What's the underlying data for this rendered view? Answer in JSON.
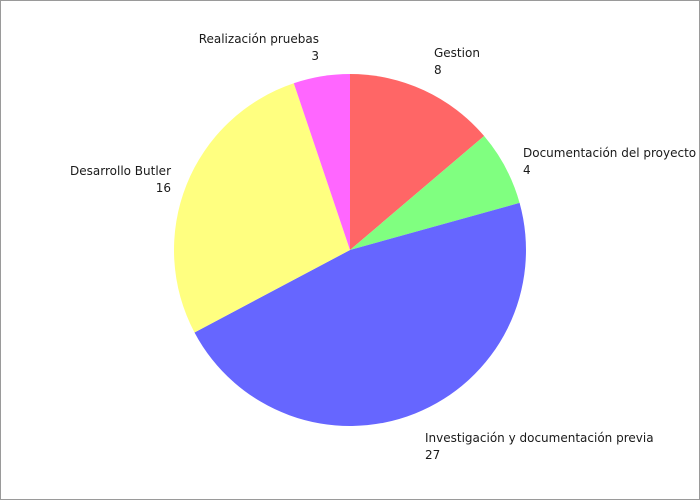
{
  "chart_data": {
    "type": "pie",
    "title": "",
    "slices": [
      {
        "label": "Gestion",
        "value": 8,
        "color": "#ff6666"
      },
      {
        "label": "Documentación del proyecto",
        "value": 4,
        "color": "#80ff80"
      },
      {
        "label": "Investigación y documentación previa",
        "value": 27,
        "color": "#6666ff"
      },
      {
        "label": "Desarrollo Butler",
        "value": 16,
        "color": "#ffff80"
      },
      {
        "label": "Realización pruebas",
        "value": 3,
        "color": "#ff66ff"
      }
    ],
    "start_angle": "12 o'clock",
    "direction": "clockwise",
    "legend": "none",
    "labels": "outside, name above value"
  }
}
